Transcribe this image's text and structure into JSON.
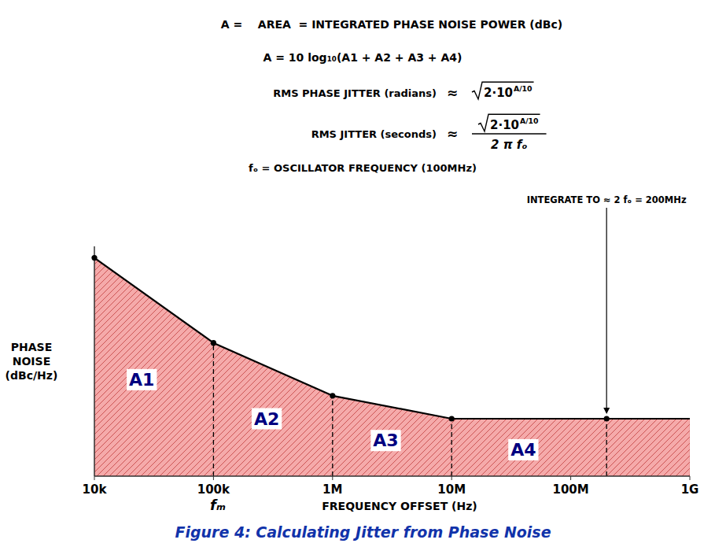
{
  "chart_data": {
    "type": "area",
    "title": "Figure 4: Calculating Jitter from Phase Noise",
    "x_label": "FREQUENCY OFFSET (Hz)",
    "x_symbol": "fₘ",
    "y_label": "PHASE\nNOISE\n(dBc/Hz)",
    "log": "x",
    "x": [
      10000,
      100000,
      1000000,
      10000000,
      200000000
    ],
    "values": [
      0.95,
      0.58,
      0.35,
      0.25,
      0.25
    ],
    "floor": 0.25,
    "color": "#f5aaaa",
    "dashed_x": [
      100000,
      1000000,
      10000000,
      200000000
    ],
    "area_labels": [
      {
        "text": "A1",
        "x": 25000,
        "y": 0.42
      },
      {
        "text": "A2",
        "x": 280000,
        "y": 0.25
      },
      {
        "text": "A3",
        "x": 2800000,
        "y": 0.155
      },
      {
        "text": "A4",
        "x": 40000000,
        "y": 0.115
      }
    ],
    "xlim": [
      10000,
      1000000000
    ],
    "ylim": [
      0,
      1
    ],
    "xticks": [
      {
        "value": 10000,
        "label": "10k"
      },
      {
        "value": 100000,
        "label": "100k"
      },
      {
        "value": 1000000,
        "label": "1M"
      },
      {
        "value": 10000000,
        "label": "10M"
      },
      {
        "value": 100000000,
        "label": "100M"
      },
      {
        "value": 1000000000,
        "label": "1G"
      }
    ],
    "tick_labels": "x",
    "grid": false,
    "annotations": [
      "A =    AREA  = INTEGRATED PHASE NOISE POWER (dBc)",
      "A = 10 log₁₀(A1 + A2 + A3 + A4)",
      "fₒ = OSCILLATOR FREQUENCY (100MHz)"
    ],
    "formulas": [
      {
        "label": "RMS PHASE JITTER (radians)",
        "relation": "≈",
        "radical": "2·10",
        "exponent": "A/10"
      },
      {
        "label": "RMS JITTER (seconds)",
        "relation": "≈",
        "radical": "2·10",
        "exponent": "A/10",
        "denominator": "2 π fₒ"
      }
    ],
    "callout": {
      "text": "INTEGRATE TO ≈ 2 fₒ = 200MHz",
      "x": 200000000,
      "y": 0.25
    }
  }
}
